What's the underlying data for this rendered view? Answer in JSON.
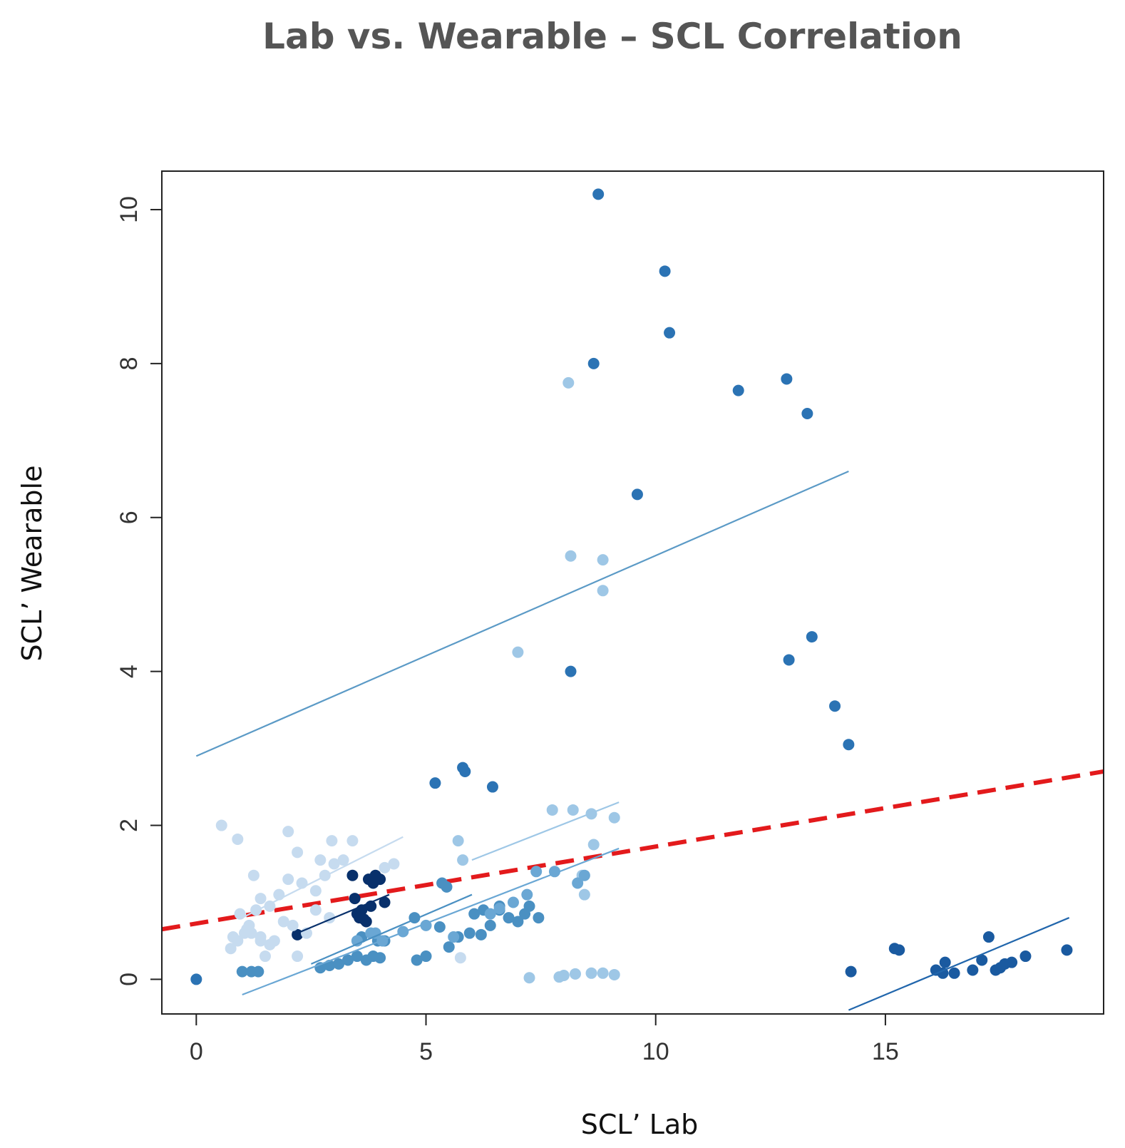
{
  "chart_data": {
    "type": "scatter",
    "title": "Lab vs. Wearable – SCL Correlation",
    "xlabel": "SCL’ Lab",
    "ylabel": "SCL’ Wearable",
    "xlim": [
      -0.75,
      19.75
    ],
    "ylim": [
      -0.45,
      10.5
    ],
    "xticks": [
      0,
      5,
      10,
      15
    ],
    "yticks": [
      0,
      2,
      4,
      6,
      8,
      10
    ],
    "grid": false,
    "legend": "none",
    "pooled_fit": {
      "color": "#e31a1c",
      "style": "dashed",
      "x": [
        -0.75,
        19.75
      ],
      "y": [
        0.65,
        2.7
      ]
    },
    "group_fits": [
      {
        "color": "#5b9ac6",
        "x": [
          0.0,
          14.2
        ],
        "y": [
          2.9,
          6.6
        ]
      },
      {
        "color": "#2166ac",
        "x": [
          14.2,
          19.0
        ],
        "y": [
          -0.4,
          0.8
        ]
      },
      {
        "color": "#6aa7d4",
        "x": [
          1.0,
          9.2
        ],
        "y": [
          -0.2,
          1.7
        ]
      },
      {
        "color": "#9ec7e6",
        "x": [
          6.0,
          9.2
        ],
        "y": [
          1.55,
          2.3
        ]
      },
      {
        "color": "#c6dbef",
        "x": [
          1.0,
          4.5
        ],
        "y": [
          0.8,
          1.85
        ]
      },
      {
        "color": "#08306b",
        "x": [
          2.2,
          4.2
        ],
        "y": [
          0.6,
          1.1
        ]
      },
      {
        "color": "#4a90c2",
        "x": [
          2.5,
          6.0
        ],
        "y": [
          0.2,
          1.1
        ]
      }
    ],
    "series": [
      {
        "color": "#2b73b4",
        "x": [
          0.0,
          8.75,
          10.2,
          10.3,
          8.65,
          11.8,
          12.85,
          13.3,
          9.6,
          8.15,
          12.9,
          13.4,
          13.9,
          14.2,
          5.8,
          5.85,
          6.45,
          5.2
        ],
        "y": [
          0.0,
          10.2,
          9.2,
          8.4,
          8.0,
          7.65,
          7.8,
          7.35,
          6.3,
          4.0,
          4.15,
          4.45,
          3.55,
          3.05,
          2.75,
          2.7,
          2.5,
          2.55
        ]
      },
      {
        "color": "#9ec7e6",
        "x": [
          8.1,
          8.15,
          8.85,
          8.85,
          7.0,
          7.75,
          8.2,
          8.6,
          9.1,
          8.65,
          7.25,
          7.9,
          8.0,
          8.25,
          8.6,
          8.85,
          9.1,
          5.7,
          5.8,
          8.4,
          8.45
        ],
        "y": [
          7.75,
          5.5,
          5.45,
          5.05,
          4.25,
          2.2,
          2.2,
          2.15,
          2.1,
          1.75,
          0.02,
          0.03,
          0.05,
          0.07,
          0.08,
          0.08,
          0.06,
          1.8,
          1.55,
          1.35,
          1.1
        ]
      },
      {
        "color": "#1a5aa0",
        "x": [
          14.25,
          15.2,
          15.3,
          16.1,
          16.25,
          16.3,
          16.5,
          16.9,
          17.1,
          17.25,
          17.4,
          17.5,
          17.6,
          17.75,
          18.05,
          18.95
        ],
        "y": [
          0.1,
          0.4,
          0.38,
          0.12,
          0.08,
          0.22,
          0.08,
          0.12,
          0.25,
          0.55,
          0.12,
          0.15,
          0.2,
          0.22,
          0.3,
          0.38
        ]
      },
      {
        "color": "#08306b",
        "x": [
          2.2,
          3.4,
          3.45,
          3.5,
          3.6,
          3.65,
          3.75,
          3.8,
          3.85,
          3.9,
          4.0,
          4.1,
          3.55,
          3.7
        ],
        "y": [
          0.58,
          1.35,
          1.05,
          0.85,
          0.9,
          0.78,
          1.3,
          0.95,
          1.25,
          1.35,
          1.3,
          1.0,
          0.8,
          0.75
        ]
      },
      {
        "color": "#4a90c2",
        "x": [
          1.0,
          1.2,
          1.35,
          2.7,
          2.9,
          3.1,
          3.3,
          3.5,
          3.7,
          3.85,
          4.0,
          4.1,
          4.8,
          5.0,
          5.3,
          5.5,
          5.7,
          5.95,
          6.2,
          6.4,
          6.6,
          6.8,
          7.0,
          7.15,
          7.25,
          7.45,
          6.05,
          6.25,
          6.6,
          5.35,
          5.45,
          4.75,
          3.95,
          3.6
        ],
        "y": [
          0.1,
          0.1,
          0.1,
          0.15,
          0.18,
          0.2,
          0.25,
          0.3,
          0.25,
          0.3,
          0.28,
          0.5,
          0.25,
          0.3,
          0.68,
          0.42,
          0.55,
          0.6,
          0.58,
          0.7,
          0.9,
          0.8,
          0.75,
          0.85,
          0.95,
          0.8,
          0.85,
          0.9,
          0.95,
          1.25,
          1.2,
          0.8,
          0.5,
          0.55
        ]
      },
      {
        "color": "#6aa7d4",
        "x": [
          3.5,
          3.8,
          3.9,
          4.05,
          4.5,
          5.0,
          5.6,
          6.4,
          6.6,
          6.9,
          7.2,
          7.4,
          7.8,
          8.3,
          8.45
        ],
        "y": [
          0.5,
          0.6,
          0.6,
          0.5,
          0.62,
          0.7,
          0.55,
          0.85,
          0.92,
          1.0,
          1.1,
          1.4,
          1.4,
          1.25,
          1.35
        ]
      },
      {
        "color": "#c6dbef",
        "x": [
          0.55,
          0.9,
          1.25,
          2.0,
          2.2,
          2.7,
          2.95,
          3.2,
          3.4,
          1.4,
          1.6,
          1.8,
          2.0,
          2.3,
          2.6,
          2.8,
          3.0,
          4.1,
          4.3,
          0.8,
          1.05,
          1.15,
          1.4,
          1.6,
          1.9,
          2.1,
          2.4,
          0.75,
          1.3,
          1.7,
          2.2,
          0.95,
          1.1,
          1.5,
          0.9,
          1.2,
          1.4,
          2.6,
          2.9,
          5.75
        ],
        "y": [
          2.0,
          1.82,
          1.35,
          1.92,
          1.65,
          1.55,
          1.8,
          1.55,
          1.8,
          1.05,
          0.95,
          1.1,
          1.3,
          1.25,
          1.15,
          1.35,
          1.5,
          1.45,
          1.5,
          0.55,
          0.6,
          0.7,
          0.5,
          0.45,
          0.75,
          0.7,
          0.6,
          0.4,
          0.9,
          0.5,
          0.3,
          0.85,
          0.65,
          0.3,
          0.5,
          0.6,
          0.55,
          0.9,
          0.8,
          0.28
        ]
      }
    ]
  }
}
